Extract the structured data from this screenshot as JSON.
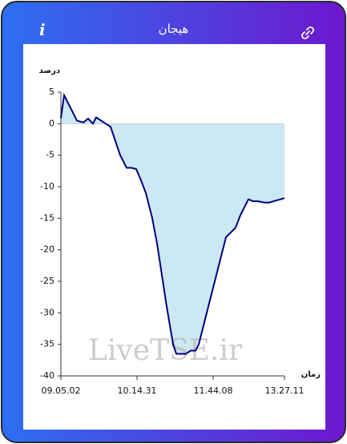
{
  "header": {
    "title": "هیجان",
    "info": "i"
  },
  "chart_data": {
    "type": "area",
    "watermark": "LiveTSE.ir",
    "y_label": "درصد",
    "x_label": "زمان",
    "x": [
      0,
      4,
      8,
      14,
      20,
      28,
      34,
      40,
      44,
      50,
      56,
      62,
      66,
      70,
      74,
      78,
      82,
      88,
      94,
      100,
      106,
      110,
      114,
      120,
      126,
      132,
      136,
      140,
      144,
      150,
      156,
      162,
      168,
      172,
      178,
      184,
      190,
      196,
      202,
      206,
      210,
      214,
      218,
      224,
      230,
      234,
      240,
      246,
      254,
      260,
      268,
      274,
      279
    ],
    "series": [
      {
        "color": "#000080",
        "area_color": "#cce8f2",
        "values": [
          0.9,
          4.5,
          3.5,
          2,
          0.5,
          0.2,
          0.8,
          0,
          1,
          0.5,
          0,
          -0.5,
          -2,
          -3.5,
          -5,
          -6,
          -7,
          -7,
          -7.2,
          -9,
          -11,
          -13,
          -15,
          -19,
          -24,
          -29,
          -32,
          -35,
          -36.5,
          -36.5,
          -36.5,
          -36,
          -36,
          -35,
          -32,
          -29,
          -26,
          -23,
          -20,
          -18,
          -17.5,
          -17,
          -16.5,
          -14.5,
          -13,
          -12,
          -12.3,
          -12.3,
          -12.5,
          -12.5,
          -12.2,
          -12,
          -11.8
        ]
      }
    ],
    "xlim": [
      0,
      279
    ],
    "xticks": [
      {
        "value": 0,
        "label": "09.05.02"
      },
      {
        "value": 95,
        "label": "10.14.31"
      },
      {
        "value": 190,
        "label": "11.44.08"
      },
      {
        "value": 279,
        "label": "13.27.11"
      }
    ],
    "ylim": [
      -40,
      5
    ],
    "yticks": [
      5,
      0,
      -5,
      -10,
      -15,
      -20,
      -25,
      -30,
      -35,
      -40
    ]
  }
}
